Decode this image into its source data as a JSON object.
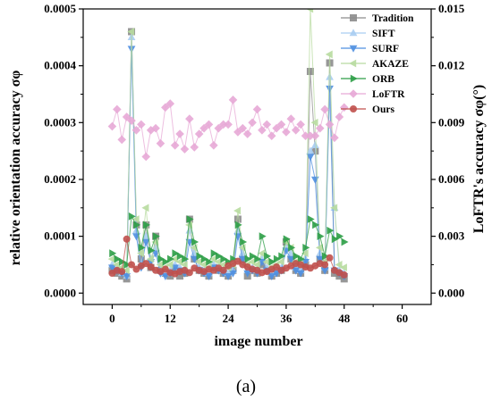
{
  "chart_data": {
    "type": "scatter",
    "xlabel": "image number",
    "ylabel_left": "relative orientation accuracy σφ",
    "ylabel_right": "LoFTR's accuracy σφ(°)",
    "caption": "(a)",
    "xlim": [
      -6,
      66
    ],
    "ylim_left": [
      -2e-05,
      0.0005
    ],
    "ylim_right": [
      -0.0006,
      0.015
    ],
    "x_ticks": [
      0,
      12,
      24,
      36,
      48,
      60
    ],
    "y_ticks_left": [
      "0.0000",
      "0.0001",
      "0.0002",
      "0.0003",
      "0.0004",
      "0.0005"
    ],
    "y_ticks_left_values": [
      0,
      0.0001,
      0.0002,
      0.0003,
      0.0004,
      0.0005
    ],
    "y_ticks_right": [
      "0.000",
      "0.003",
      "0.006",
      "0.009",
      "0.012",
      "0.015"
    ],
    "y_ticks_right_values": [
      0,
      0.003,
      0.006,
      0.009,
      0.012,
      0.015
    ],
    "legend_position": "top-right",
    "legend": [
      "Tradition",
      "SIFT",
      "SURF",
      "AKAZE",
      "ORB",
      "LoFTR",
      "Ours"
    ],
    "series": [
      {
        "name": "Tradition",
        "marker": "square",
        "color": "#8c8c8c",
        "axis": "left",
        "values": [
          4e-05,
          3.5e-05,
          3e-05,
          2.5e-05,
          0.00046,
          0.00012,
          6e-05,
          0.00012,
          4.5e-05,
          0.0001,
          4e-05,
          3.5e-05,
          3e-05,
          4e-05,
          3e-05,
          3.5e-05,
          0.00013,
          6e-05,
          4e-05,
          3.5e-05,
          3e-05,
          4.5e-05,
          4e-05,
          3.5e-05,
          3e-05,
          4e-05,
          0.00013,
          6e-05,
          3e-05,
          4e-05,
          3.5e-05,
          5e-05,
          4e-05,
          3e-05,
          3.5e-05,
          4e-05,
          9e-05,
          6e-05,
          4e-05,
          3.5e-05,
          5e-05,
          0.00039,
          0.00025,
          6e-05,
          4e-05,
          0.000405,
          3.5e-05,
          3e-05,
          2.5e-05
        ]
      },
      {
        "name": "SIFT",
        "marker": "triangle-up",
        "color": "#a9cdf2",
        "axis": "left",
        "values": [
          5e-05,
          4e-05,
          3.5e-05,
          3e-05,
          0.00045,
          0.00011,
          5e-05,
          0.0001,
          6e-05,
          8e-05,
          4e-05,
          3.5e-05,
          4e-05,
          5e-05,
          4.5e-05,
          4e-05,
          0.00011,
          7e-05,
          4.5e-05,
          4e-05,
          3.5e-05,
          5e-05,
          4.5e-05,
          4e-05,
          3.5e-05,
          4e-05,
          0.00011,
          7e-05,
          4e-05,
          4.5e-05,
          4e-05,
          6e-05,
          4.5e-05,
          3.5e-05,
          4e-05,
          4.5e-05,
          8e-05,
          7e-05,
          4.5e-05,
          4e-05,
          6e-05,
          0.00025,
          0.00026,
          7e-05,
          4.5e-05,
          0.00038,
          0.00015,
          4e-05,
          3.5e-05
        ]
      },
      {
        "name": "SURF",
        "marker": "triangle-down",
        "color": "#4f8fe0",
        "axis": "left",
        "values": [
          4.5e-05,
          4e-05,
          3.5e-05,
          3e-05,
          0.00043,
          0.0001,
          4.5e-05,
          9e-05,
          5.5e-05,
          7e-05,
          3.5e-05,
          3e-05,
          3.5e-05,
          4.5e-05,
          4e-05,
          3.5e-05,
          9e-05,
          6e-05,
          4e-05,
          3.5e-05,
          3e-05,
          4.5e-05,
          4e-05,
          3.5e-05,
          3e-05,
          3.5e-05,
          0.0001,
          6e-05,
          3.5e-05,
          4e-05,
          3.5e-05,
          5.5e-05,
          4e-05,
          3e-05,
          3.5e-05,
          4e-05,
          7.5e-05,
          6e-05,
          4e-05,
          3.5e-05,
          5.5e-05,
          0.00024,
          0.0002,
          6e-05,
          4e-05,
          0.00036,
          4e-05,
          3.5e-05,
          3e-05
        ]
      },
      {
        "name": "AKAZE",
        "marker": "triangle-left",
        "color": "#b8dba0",
        "axis": "left",
        "values": [
          6e-05,
          5e-05,
          4.5e-05,
          4e-05,
          0.00046,
          0.00013,
          7e-05,
          0.00015,
          6e-05,
          9e-05,
          5e-05,
          4.5e-05,
          5e-05,
          6e-05,
          5.5e-05,
          5e-05,
          0.00012,
          8e-05,
          5.5e-05,
          5e-05,
          4.5e-05,
          6e-05,
          5.5e-05,
          5e-05,
          4.5e-05,
          5e-05,
          0.000145,
          8e-05,
          5e-05,
          5.5e-05,
          5e-05,
          7e-05,
          5.5e-05,
          4.5e-05,
          5e-05,
          5.5e-05,
          9e-05,
          8e-05,
          5.5e-05,
          5e-05,
          7e-05,
          0.0005,
          0.0003,
          8e-05,
          5.5e-05,
          0.00042,
          0.00015,
          5e-05,
          4.5e-05
        ]
      },
      {
        "name": "ORB",
        "marker": "triangle-right",
        "color": "#2e9e47",
        "axis": "left",
        "values": [
          7e-05,
          6e-05,
          5.5e-05,
          5e-05,
          0.000135,
          0.00012,
          8e-05,
          0.00012,
          7.5e-05,
          0.0001,
          6e-05,
          5.5e-05,
          6e-05,
          7e-05,
          6.5e-05,
          6e-05,
          0.00013,
          9e-05,
          6.5e-05,
          6e-05,
          5.5e-05,
          7e-05,
          6.5e-05,
          6e-05,
          5.5e-05,
          6e-05,
          0.00012,
          9e-05,
          6e-05,
          6.5e-05,
          6e-05,
          0.0001,
          6.5e-05,
          5.5e-05,
          6e-05,
          6.5e-05,
          9.5e-05,
          8e-05,
          6.5e-05,
          6e-05,
          8e-05,
          0.00013,
          0.00012,
          0.0001,
          6.5e-05,
          0.00011,
          9.5e-05,
          0.0001,
          9e-05
        ]
      },
      {
        "name": "LoFTR",
        "marker": "diamond",
        "color": "#e7a9d6",
        "axis": "right",
        "values": [
          0.0088,
          0.0097,
          0.0081,
          0.0093,
          0.0091,
          0.0086,
          0.0089,
          0.0072,
          0.0086,
          0.0087,
          0.0079,
          0.0098,
          0.01,
          0.0078,
          0.0084,
          0.0076,
          0.0092,
          0.0077,
          0.0084,
          0.0087,
          0.0089,
          0.0078,
          0.0087,
          0.0089,
          0.0089,
          0.0102,
          0.0085,
          0.0087,
          0.0084,
          0.009,
          0.0097,
          0.0086,
          0.0089,
          0.0083,
          0.0087,
          0.0089,
          0.0085,
          0.0092,
          0.0086,
          0.0089,
          0.0083,
          0.0083,
          0.0083,
          0.0087,
          0.0097,
          0.0089,
          0.0082,
          0.0093,
          0.0098
        ]
      },
      {
        "name": "Ours",
        "marker": "circle",
        "color": "#c0504d",
        "axis": "left",
        "values": [
          3.5e-05,
          4e-05,
          3.8e-05,
          9.5e-05,
          5e-05,
          4.2e-05,
          4.8e-05,
          5.2e-05,
          4.6e-05,
          4e-05,
          3.8e-05,
          4.2e-05,
          3.6e-05,
          3.4e-05,
          3.8e-05,
          4e-05,
          3.6e-05,
          4.4e-05,
          4e-05,
          3.8e-05,
          4.2e-05,
          4e-05,
          4.4e-05,
          4e-05,
          4.8e-05,
          5.2e-05,
          5.6e-05,
          5e-05,
          4.6e-05,
          4.2e-05,
          4e-05,
          3.6e-05,
          3.8e-05,
          4.2e-05,
          4.6e-05,
          4e-05,
          4.4e-05,
          4.8e-05,
          5.2e-05,
          5e-05,
          4.6e-05,
          4.4e-05,
          4.8e-05,
          5.2e-05,
          5e-05,
          6.2e-05,
          4e-05,
          3.6e-05,
          3.2e-05
        ]
      }
    ]
  }
}
